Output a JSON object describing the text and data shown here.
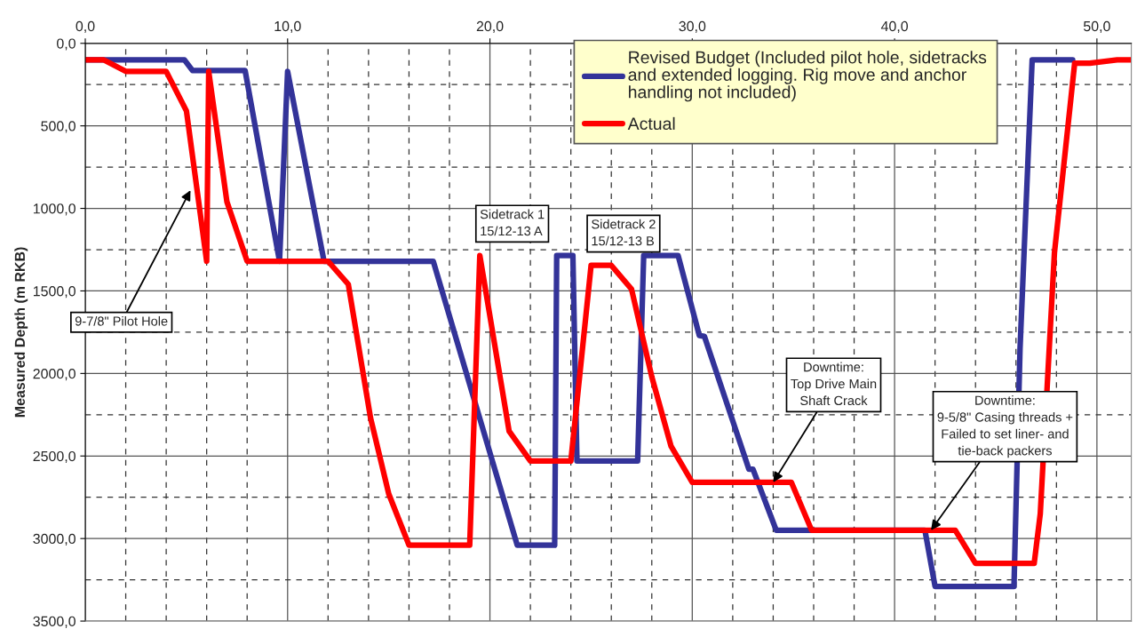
{
  "chart_data": {
    "type": "line",
    "ylabel": "Measured Depth (m RKB)",
    "xlim": [
      0,
      51.7
    ],
    "xticks": [
      {
        "value": 0,
        "label": "0,0"
      },
      {
        "value": 10,
        "label": "10,0"
      },
      {
        "value": 20,
        "label": "20,0"
      },
      {
        "value": 30,
        "label": "30,0"
      },
      {
        "value": 40,
        "label": "40,0"
      },
      {
        "value": 50,
        "label": "50,0"
      }
    ],
    "ylim": [
      3500,
      0
    ],
    "yticks": [
      {
        "value": 0,
        "label": "0,0"
      },
      {
        "value": 500,
        "label": "500,0"
      },
      {
        "value": 1000,
        "label": "1000,0"
      },
      {
        "value": 1500,
        "label": "1500,0"
      },
      {
        "value": 2000,
        "label": "2000,0"
      },
      {
        "value": 2500,
        "label": "2500,0"
      },
      {
        "value": 3000,
        "label": "3000,0"
      },
      {
        "value": 3500,
        "label": "3500,0"
      }
    ],
    "grid": true,
    "legend": "top right",
    "marker": "none",
    "line_style": "solid",
    "series": [
      {
        "name": "Revised Budget (Included pilot hole, sidetracks\nand extended logging. Rig move and anchor\nhandling not included)",
        "color": "#333399",
        "x": [
          0,
          4.9,
          5.3,
          7.9,
          9.6,
          10.0,
          11.8,
          17.2,
          21.35,
          23.2,
          23.3,
          24.1,
          24.3,
          27.3,
          27.6,
          29.3,
          30.35,
          30.6,
          32.8,
          33.0,
          34.15,
          41.5,
          42.0,
          45.9,
          46.2,
          46.8,
          48.8
        ],
        "values": [
          100,
          100,
          165,
          165,
          1320,
          170,
          1320,
          1320,
          3040,
          3040,
          1285,
          1285,
          2530,
          2530,
          1285,
          1285,
          1770,
          1775,
          2580,
          2580,
          2950,
          2950,
          3290,
          3290,
          1850,
          100,
          100
        ]
      },
      {
        "name": "Actual",
        "color": "#ff0000",
        "x": [
          0,
          0.9,
          2.0,
          4.0,
          5.0,
          6.0,
          6.1,
          7.0,
          8.0,
          12.0,
          13.0,
          14.1,
          15.0,
          16.0,
          19.0,
          19.5,
          20.95,
          22.0,
          24.0,
          25.0,
          26.0,
          27.0,
          28.0,
          28.95,
          30.0,
          34.9,
          35.9,
          43.0,
          44.0,
          46.9,
          47.2,
          47.9,
          48.9,
          49.65,
          51.0,
          51.7
        ],
        "values": [
          100,
          100,
          170,
          170,
          410,
          1320,
          170,
          960,
          1320,
          1320,
          1460,
          2270,
          2730,
          3040,
          3040,
          1285,
          2350,
          2530,
          2530,
          1345,
          1345,
          1490,
          2020,
          2440,
          2660,
          2660,
          2950,
          2950,
          3150,
          3150,
          2850,
          1270,
          120,
          120,
          100,
          100
        ]
      }
    ],
    "annotations": [
      {
        "text": "9-7/8\" Pilot Hole",
        "x": 5.2,
        "y": 890
      },
      {
        "text": "Sidetrack 1\n15/12-13 A",
        "x": 19.5,
        "y": 1285
      },
      {
        "text": "Sidetrack 2\n15/12-13 B",
        "x": 25.0,
        "y": 1345
      },
      {
        "text": "Downtime:\nTop Drive Main\nShaft Crack",
        "x": 34.0,
        "y": 2660
      },
      {
        "text": "Downtime:\n9-5/8\" Casing threads +\nFailed to set liner- and\ntie-back packers",
        "x": 41.8,
        "y": 2950
      }
    ]
  }
}
